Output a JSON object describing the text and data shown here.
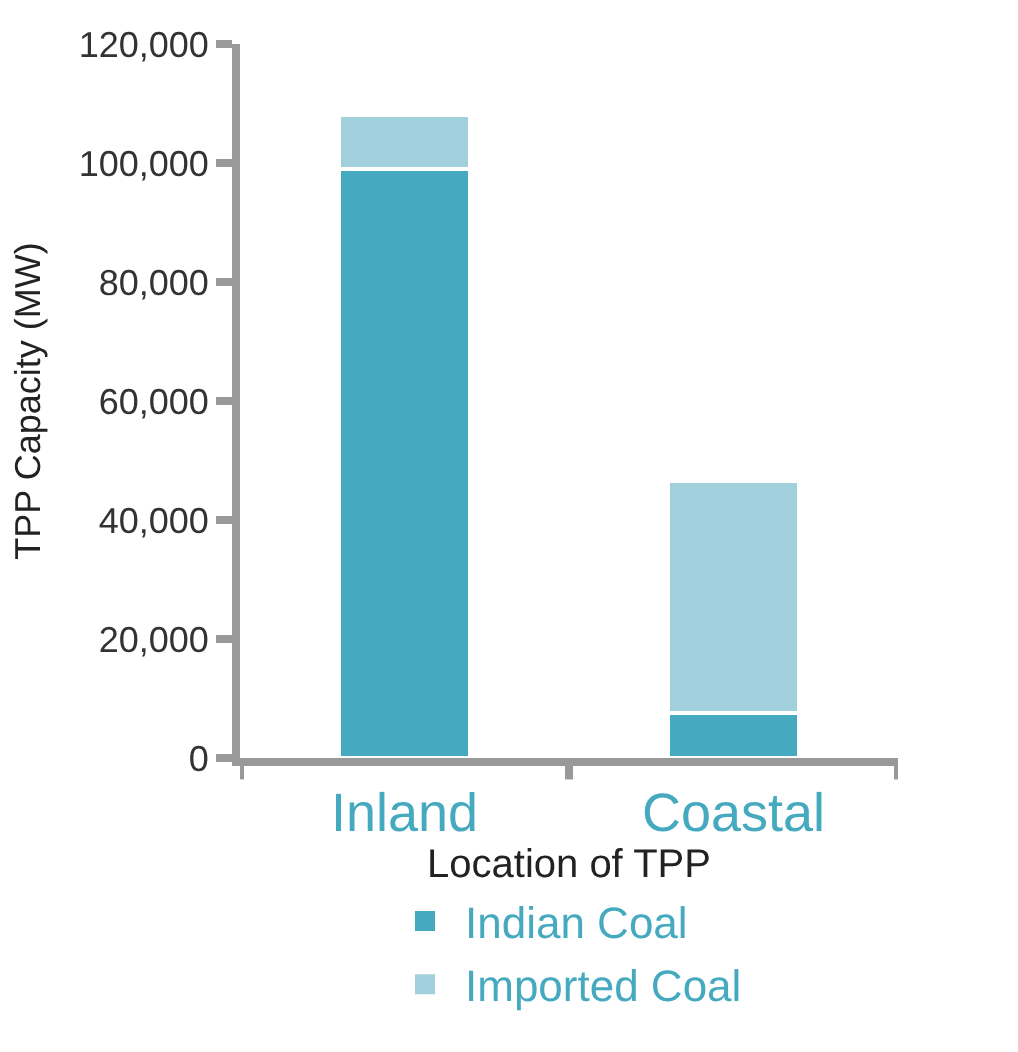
{
  "chart_data": {
    "type": "bar",
    "stacked": true,
    "xlabel": "Location of TPP",
    "ylabel": "TPP Capacity (MW)",
    "categories": [
      "Inland",
      "Coastal"
    ],
    "series": [
      {
        "name": "Indian Coal",
        "color": "#45aabf",
        "values": [
          99000,
          7500
        ]
      },
      {
        "name": "Imported Coal",
        "color": "#a1cfdb",
        "values": [
          9000,
          39000
        ]
      }
    ],
    "ylim": [
      0,
      120000
    ],
    "yticks": [
      0,
      {
        "value": 20000,
        "label": "20,000"
      },
      {
        "value": 40000,
        "label": "40,000"
      },
      {
        "value": 60000,
        "label": "60,000"
      },
      {
        "value": 80000,
        "label": "80,000"
      },
      {
        "value": 100000,
        "label": "100,000"
      },
      {
        "value": 120000,
        "label": "120,000"
      }
    ],
    "legend": "bottom"
  }
}
